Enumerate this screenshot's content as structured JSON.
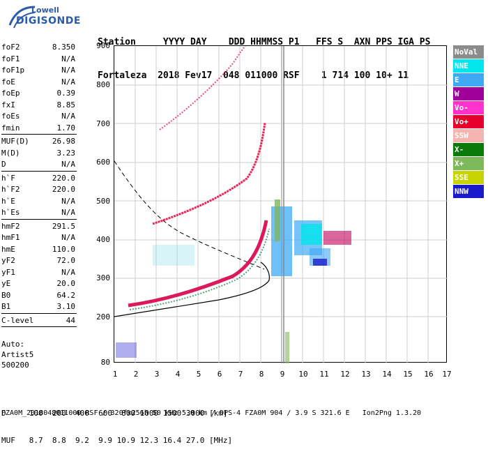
{
  "logo": {
    "line1": "Lowell",
    "line2": "DIGISONDE"
  },
  "header": {
    "row1": "Station     YYYY DAY    DDD HHMMSS P1   FFS S  AXN PPS IGA PS",
    "row2": "Fortaleza  2018 Fev17  048 011000 RSF    1 714 100 10+ 11"
  },
  "params_block1": [
    {
      "k": "foF2",
      "v": "8.350"
    },
    {
      "k": "foF1",
      "v": "N/A"
    },
    {
      "k": "foF1p",
      "v": "N/A"
    },
    {
      "k": "foE",
      "v": "N/A"
    },
    {
      "k": "foEp",
      "v": "0.39"
    },
    {
      "k": "fxI",
      "v": "8.85"
    },
    {
      "k": "foEs",
      "v": "N/A"
    },
    {
      "k": "fmin",
      "v": "1.70"
    }
  ],
  "params_block2": [
    {
      "k": "MUF(D)",
      "v": "26.98"
    },
    {
      "k": "M(D)",
      "v": "3.23"
    },
    {
      "k": "D",
      "v": "N/A"
    }
  ],
  "params_block3": [
    {
      "k": "h`F",
      "v": "220.0"
    },
    {
      "k": "h`F2",
      "v": "220.0"
    },
    {
      "k": "h`E",
      "v": "N/A"
    },
    {
      "k": "h`Es",
      "v": "N/A"
    }
  ],
  "params_block4": [
    {
      "k": "hmF2",
      "v": "291.5"
    },
    {
      "k": "hmF1",
      "v": "N/A"
    },
    {
      "k": "hmE",
      "v": "110.0"
    },
    {
      "k": "yF2",
      "v": "72.0"
    },
    {
      "k": "yF1",
      "v": "N/A"
    },
    {
      "k": "yE",
      "v": "20.0"
    },
    {
      "k": "B0",
      "v": "64.2"
    },
    {
      "k": "B1",
      "v": "3.10"
    }
  ],
  "params_block5": [
    {
      "k": "C-level",
      "v": "44"
    }
  ],
  "artist": {
    "line1": "Auto:",
    "line2": "Artist5",
    "line3": "500200"
  },
  "axis": {
    "y_ticks": [
      "900",
      "800",
      "700",
      "600",
      "500",
      "400",
      "300",
      "200",
      "80"
    ],
    "x_ticks": [
      "1",
      "2",
      "3",
      "4",
      "5",
      "6",
      "7",
      "8",
      "9",
      "10",
      "11",
      "12",
      "13",
      "14",
      "15",
      "16",
      "17"
    ]
  },
  "legend": [
    {
      "label": "NoVal",
      "color": "#8c8c8c"
    },
    {
      "label": "NNE",
      "color": "#00e5ee"
    },
    {
      "label": "E",
      "color": "#3fa9f5"
    },
    {
      "label": "W",
      "color": "#a0009a"
    },
    {
      "label": "Vo-",
      "color": "#ff33cc"
    },
    {
      "label": "Vo+",
      "color": "#e8002c"
    },
    {
      "label": "SSW",
      "color": "#f4b4b0"
    },
    {
      "label": "X-",
      "color": "#0a7a0a"
    },
    {
      "label": "X+",
      "color": "#7db85a"
    },
    {
      "label": "SSE",
      "color": "#c8d400"
    },
    {
      "label": "NNW",
      "color": "#1a1acc"
    }
  ],
  "footer": {
    "row1": "D     100  200  400  600  800 1000 1500 3000 [km]",
    "row2": "MUF   8.7  8.8  9.2  9.9 10.9 12.3 16.4 27.0 [MHz]",
    "filename": "FZA0M_2018048011000.RSF / 320fx256h 50 kHz 5.0 km / DPS-4 FZA0M 904 / 3.9 S 321.6 E   Ion2Png 1.3.20"
  }
}
